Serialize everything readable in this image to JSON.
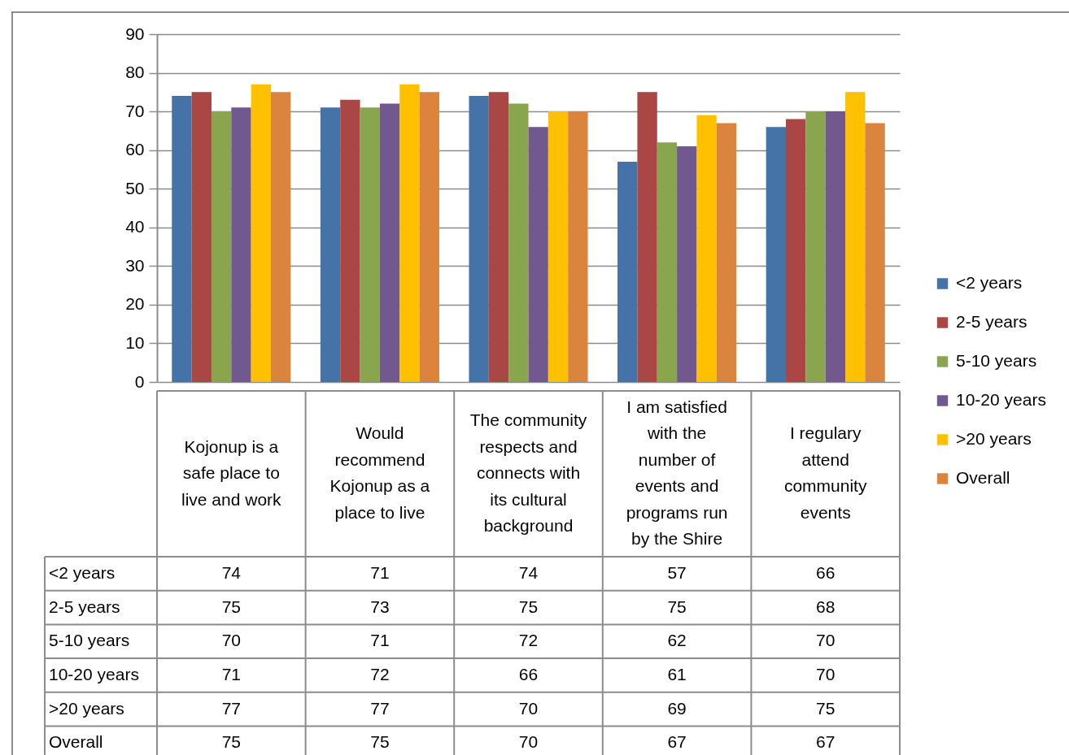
{
  "chart_data": {
    "type": "bar",
    "categories": [
      "Kojonup is a safe place to live and work",
      "Would recommend Kojonup as a place to live",
      "The community respects and connects with its cultural background",
      "I am satisfied with the number of events and programs run by the Shire",
      "I regulary attend community events"
    ],
    "series": [
      {
        "name": "<2 years",
        "color": "#4572a7",
        "values": [
          74,
          71,
          74,
          57,
          66
        ]
      },
      {
        "name": "2-5 years",
        "color": "#aa4643",
        "values": [
          75,
          73,
          75,
          75,
          68
        ]
      },
      {
        "name": "5-10 years",
        "color": "#89a54e",
        "values": [
          70,
          71,
          72,
          62,
          70
        ]
      },
      {
        "name": "10-20 years",
        "color": "#71588f",
        "values": [
          71,
          72,
          66,
          61,
          70
        ]
      },
      {
        "name": ">20 years",
        "color": "#ffc000",
        "values": [
          77,
          77,
          70,
          69,
          75
        ]
      },
      {
        "name": "Overall",
        "color": "#db843d",
        "values": [
          75,
          75,
          70,
          67,
          67
        ]
      }
    ],
    "ylim": [
      0,
      90
    ],
    "yticks": [
      0,
      10,
      20,
      30,
      40,
      50,
      60,
      70,
      80,
      90
    ],
    "grid": "y",
    "legend": "right",
    "data_labels": true
  }
}
